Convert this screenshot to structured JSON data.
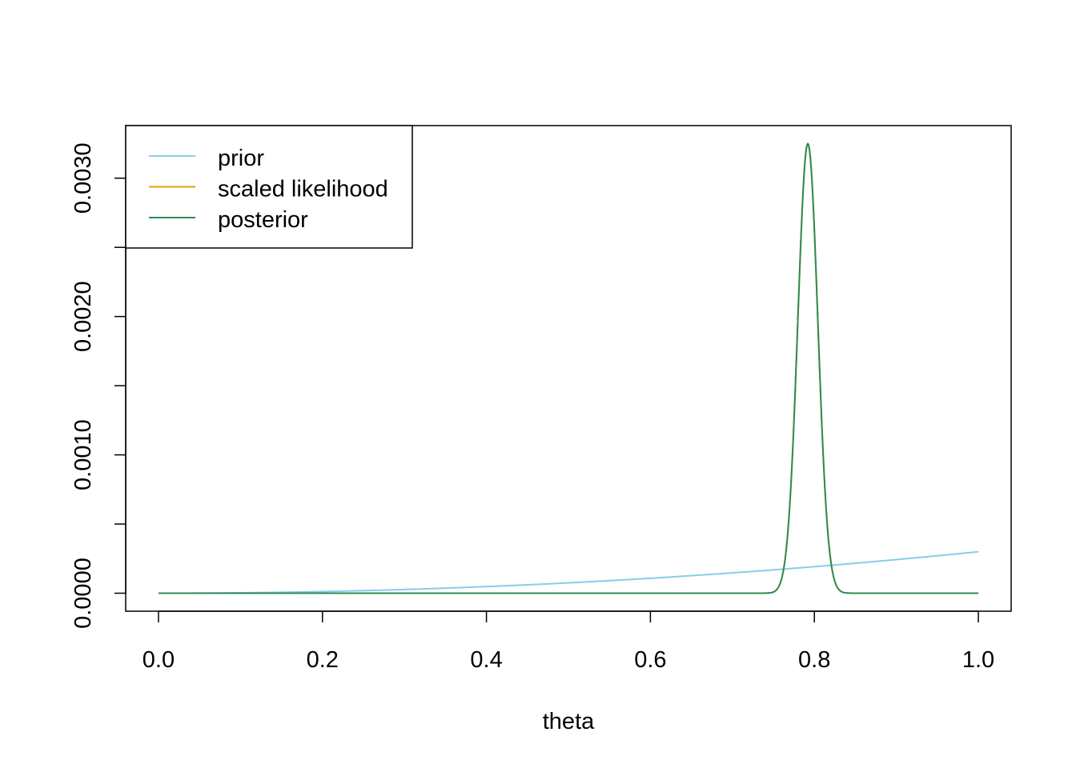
{
  "chart_data": {
    "type": "line",
    "title": "",
    "xlabel": "theta",
    "ylabel": "",
    "xlim": [
      -0.04,
      1.04
    ],
    "ylim": [
      -0.00013,
      0.00338
    ],
    "x_ticks": [
      "0.0",
      "0.2",
      "0.4",
      "0.6",
      "0.8",
      "1.0"
    ],
    "x_tick_values": [
      0,
      0.2,
      0.4,
      0.6,
      0.8,
      1.0
    ],
    "y_ticks": [
      "0.0000",
      "0.0010",
      "0.0020",
      "0.0030"
    ],
    "y_tick_values": [
      0,
      0.001,
      0.002,
      0.003
    ],
    "y_minor_tick_values": [
      0.0005,
      0.0015,
      0.0025
    ],
    "grid": false,
    "legend_position": "top-left",
    "series": [
      {
        "name": "prior",
        "color": "#87CEEB",
        "shape": "power",
        "exponent": 2,
        "max_at_1": 0.0003
      },
      {
        "name": "scaled likelihood",
        "color": "#E69F00",
        "shape": "peak",
        "mode": 0.792,
        "sd": 0.0122,
        "peak": 0.00325
      },
      {
        "name": "posterior",
        "color": "#2E8B57",
        "shape": "peak",
        "mode": 0.792,
        "sd": 0.0122,
        "peak": 0.00325
      }
    ]
  }
}
